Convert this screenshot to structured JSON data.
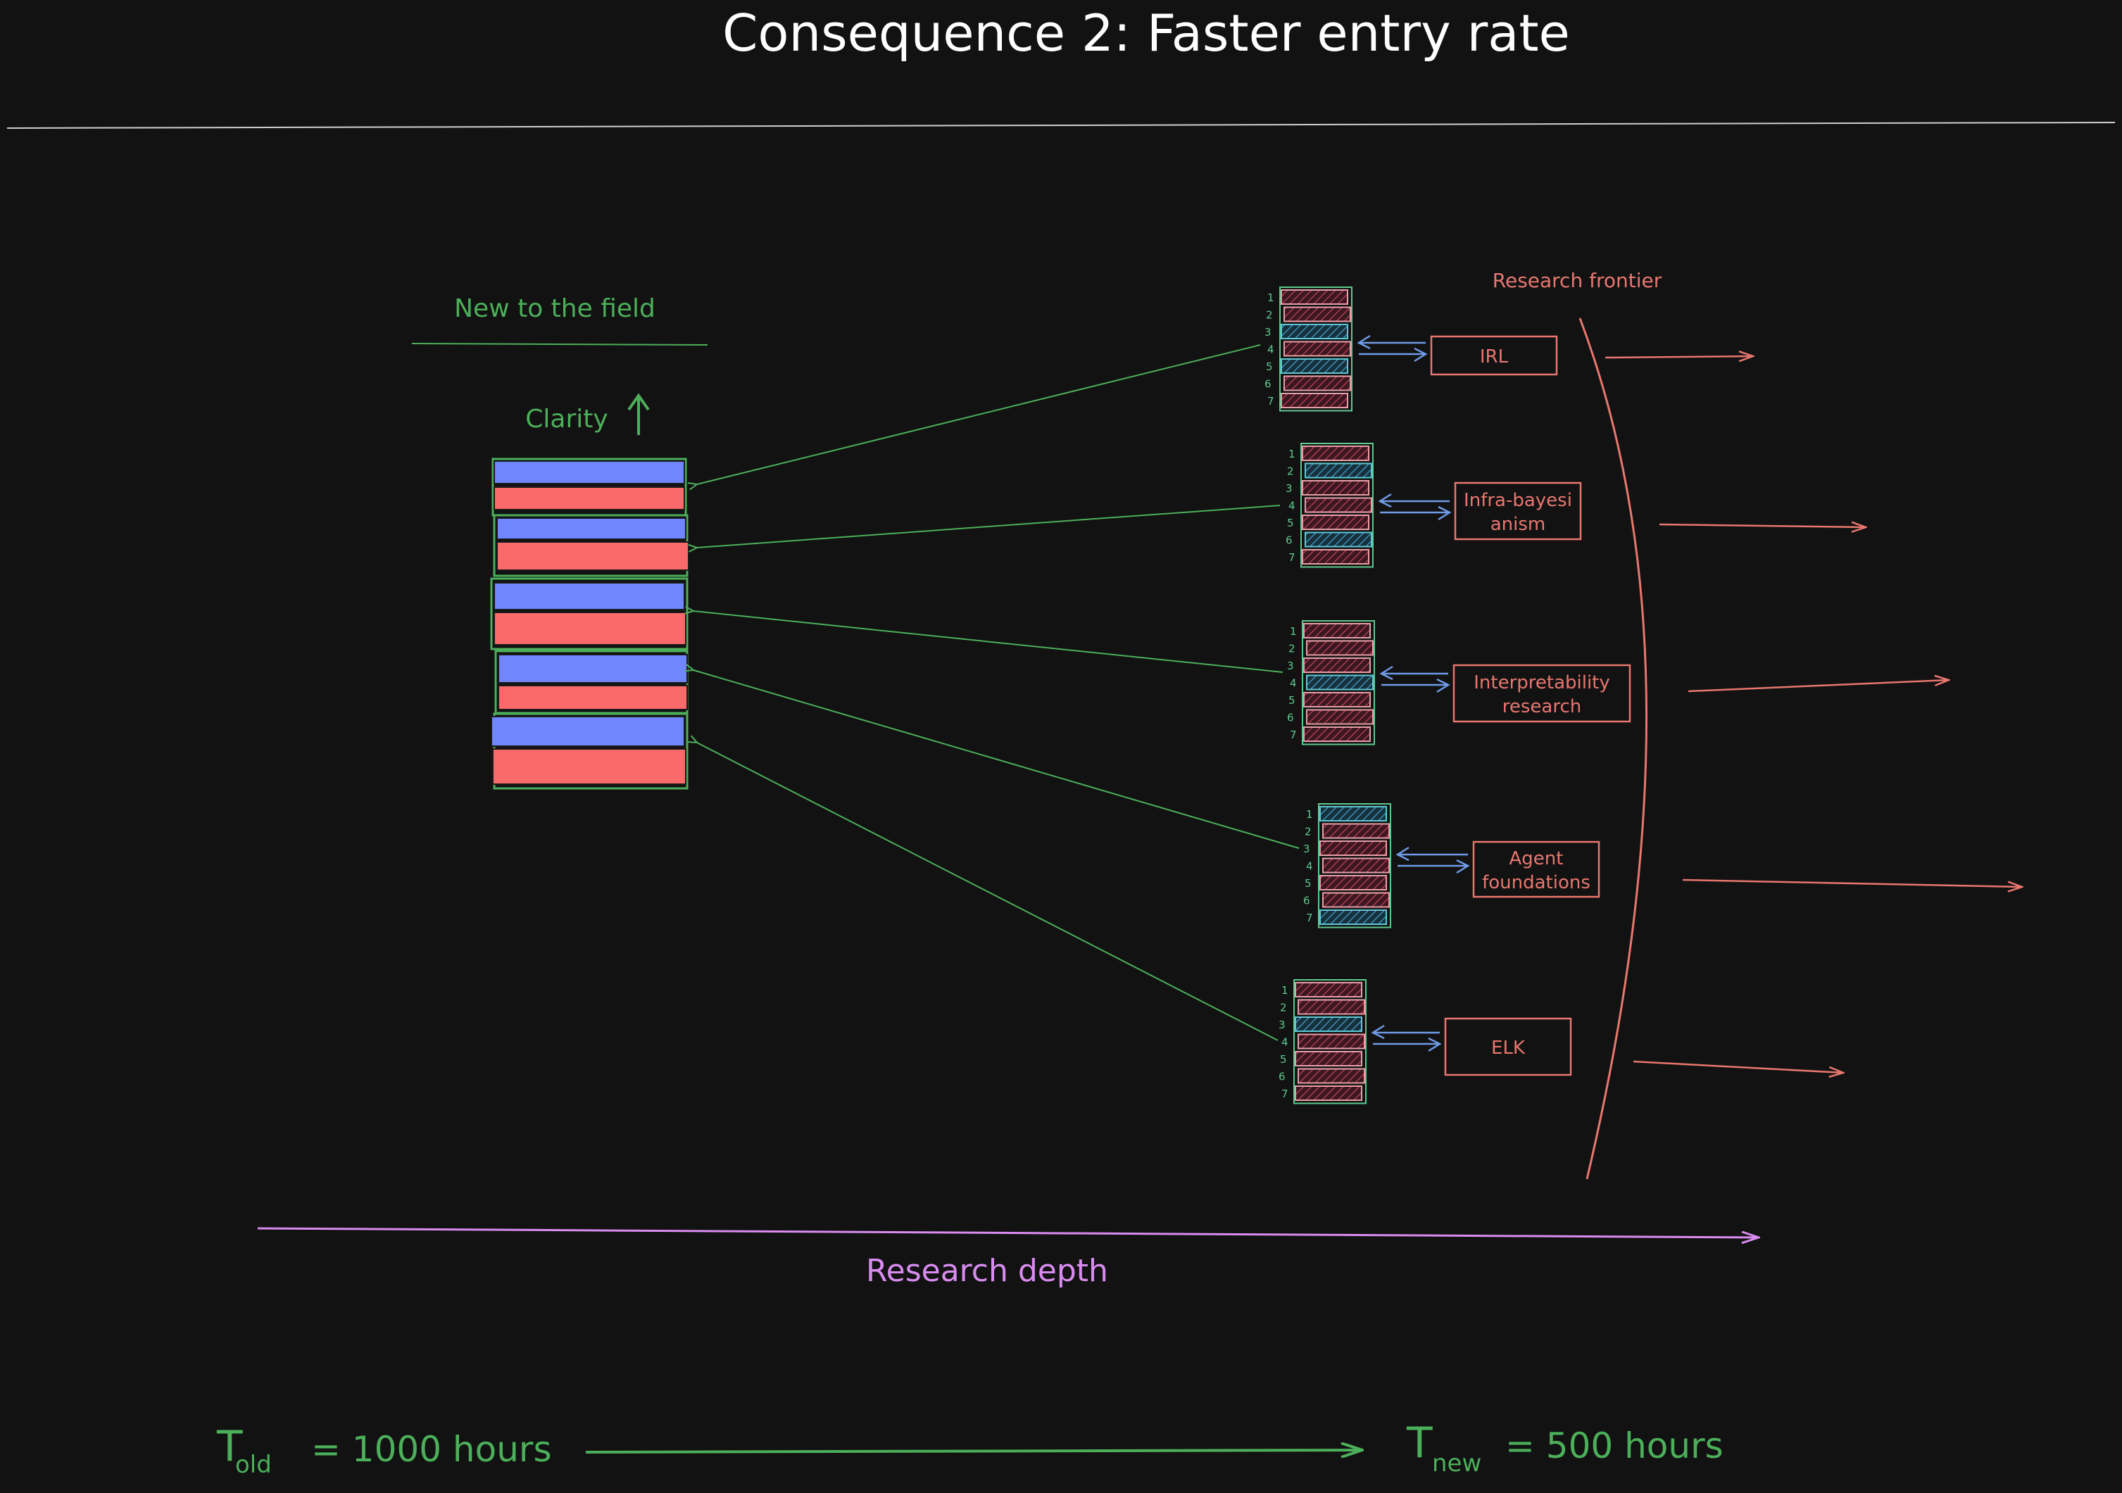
{
  "title": "Consequence 2: Faster entry rate",
  "colors": {
    "background": "#121212",
    "green": "#4caf5a",
    "salmon": "#e8776f",
    "blue": "#6f86ff",
    "red": "#fa6a6a",
    "arrow_blue": "#6f9be8",
    "pink": "#d98cf0",
    "hatch_red": "#a0354a",
    "hatch_blue": "#3a7da0"
  },
  "left_stack": {
    "heading": "New to the field",
    "clarity_label": "Clarity"
  },
  "frontier_label": "Research frontier",
  "stack_row_numbers": [
    "1",
    "2",
    "3",
    "4",
    "5",
    "6",
    "7"
  ],
  "areas": [
    {
      "label_lines": [
        "IRL"
      ],
      "blue_rows": [
        3,
        5
      ]
    },
    {
      "label_lines": [
        "Infra-bayesi",
        "anism"
      ],
      "blue_rows": [
        2,
        6
      ]
    },
    {
      "label_lines": [
        "Interpretability",
        "research"
      ],
      "blue_rows": [
        4
      ]
    },
    {
      "label_lines": [
        "Agent",
        "foundations"
      ],
      "blue_rows": [
        1,
        7
      ]
    },
    {
      "label_lines": [
        "ELK"
      ],
      "blue_rows": [
        3
      ]
    }
  ],
  "axis_label": "Research depth",
  "timeline": {
    "old_T": "T",
    "old_sub": "old",
    "old_value": "= 1000 hours",
    "new_T": "T",
    "new_sub": "new",
    "new_value": "= 500 hours"
  }
}
